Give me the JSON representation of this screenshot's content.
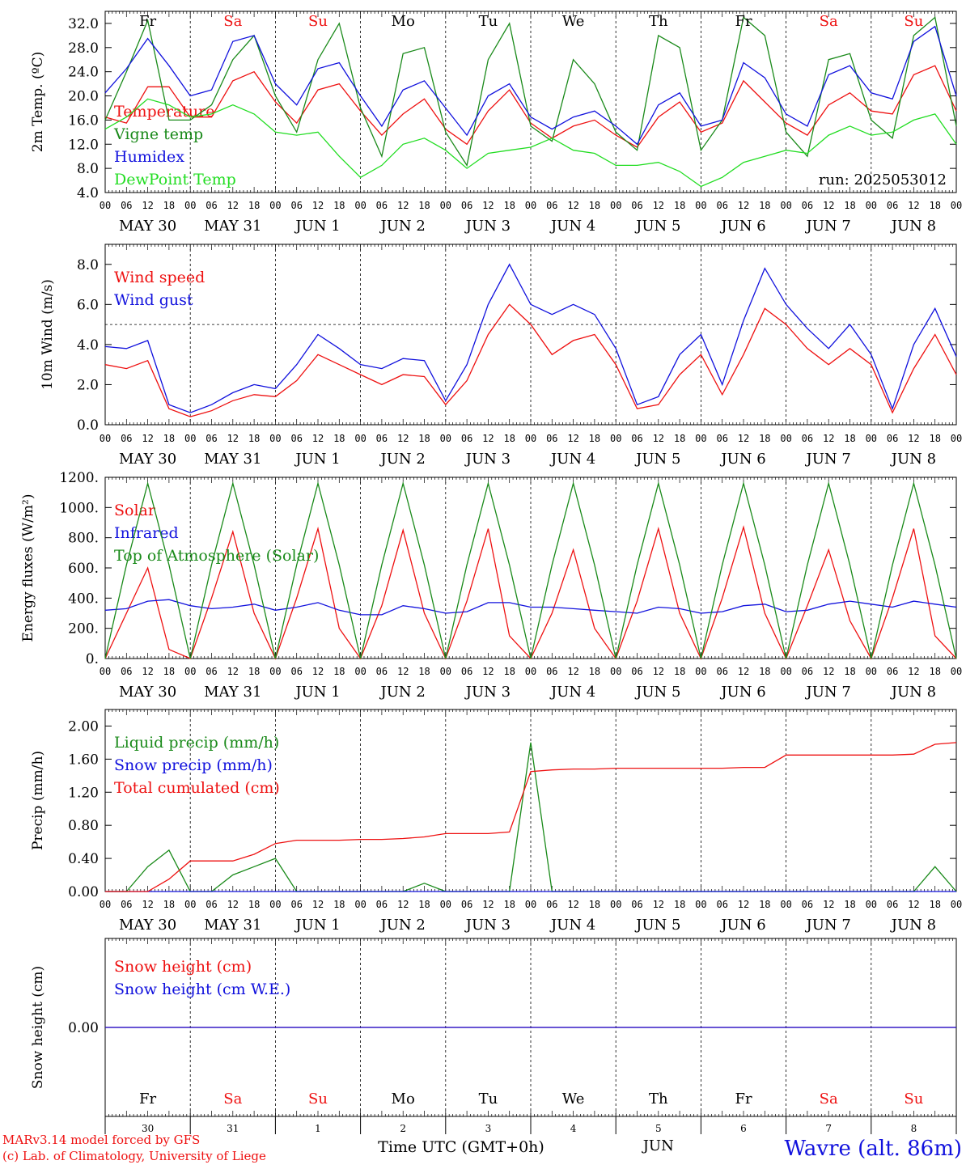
{
  "colors": {
    "red": "#ee1111",
    "green": "#1a8a1a",
    "lightgreen": "#22dd22",
    "blue": "#1111dd",
    "frame": "#000000"
  },
  "days": {
    "weekday_top": [
      "Fr",
      "Sa",
      "Su",
      "Mo",
      "Tu",
      "We",
      "Th",
      "Fr",
      "Sa",
      "Su"
    ],
    "weekday_weekend": [
      false,
      true,
      true,
      false,
      false,
      false,
      false,
      false,
      true,
      true
    ],
    "date_labels": [
      "MAY 30",
      "MAY 31",
      "JUN  1",
      "JUN  2",
      "JUN  3",
      "JUN  4",
      "JUN  5",
      "JUN  6",
      "JUN  7",
      "JUN  8"
    ],
    "hour_ticks": [
      "00",
      "06",
      "12",
      "18"
    ],
    "final_hour": "00",
    "day_numbers": [
      "30",
      "31",
      "1",
      "2",
      "3",
      "4",
      "5",
      "6",
      "7",
      "8"
    ],
    "month_label": "JUN"
  },
  "footer": {
    "model": "MARv3.14 model forced by GFS",
    "copyright": "(c) Lab. of Climatology, University of Liege",
    "time_label": "Time UTC (GMT+0h)",
    "station": "Wavre (alt. 86m)"
  },
  "chart_data": [
    {
      "id": "temperature",
      "type": "line",
      "ylabel": "2m Temp. (ºC)",
      "ylim": [
        4,
        34
      ],
      "yticks": [
        "4.0",
        "8.0",
        "12.0",
        "16.0",
        "20.0",
        "24.0",
        "28.0",
        "32.0"
      ],
      "run_label": "run: 2025053012",
      "x_unit": "hours since 2025-05-30 00 UTC (6-hourly)",
      "series": [
        {
          "name": "Temperature",
          "color": "red",
          "values": [
            16.5,
            15.5,
            21.5,
            21.5,
            16.5,
            16.5,
            22.5,
            24.0,
            19.0,
            15.5,
            21.0,
            22.0,
            17.5,
            13.5,
            17.0,
            19.5,
            14.5,
            12.0,
            17.5,
            21.0,
            15.5,
            13.0,
            15.0,
            16.0,
            13.5,
            11.5,
            16.5,
            19.0,
            14.0,
            15.5,
            22.5,
            19.0,
            15.5,
            13.5,
            18.5,
            20.5,
            17.5,
            17.0,
            23.5,
            25.0,
            17.5
          ]
        },
        {
          "name": "Vigne temp",
          "color": "green",
          "values": [
            16.0,
            24.0,
            32.5,
            16.0,
            16.0,
            18.5,
            26.0,
            30.0,
            20.0,
            14.0,
            26.0,
            32.0,
            18.0,
            10.0,
            27.0,
            28.0,
            14.0,
            8.5,
            26.0,
            32.0,
            15.0,
            12.5,
            26.0,
            22.0,
            14.0,
            11.0,
            30.0,
            28.0,
            11.0,
            16.0,
            33.0,
            30.0,
            14.0,
            10.0,
            26.0,
            27.0,
            16.0,
            13.0,
            30.0,
            33.0,
            15.0
          ]
        },
        {
          "name": "Humidex",
          "color": "blue",
          "values": [
            20.5,
            24.5,
            29.5,
            25.0,
            20.0,
            21.0,
            29.0,
            30.0,
            22.0,
            18.5,
            24.5,
            25.5,
            20.0,
            15.0,
            21.0,
            22.5,
            18.0,
            13.5,
            20.0,
            22.0,
            16.5,
            14.5,
            16.5,
            17.5,
            15.0,
            12.0,
            18.5,
            20.5,
            15.0,
            16.0,
            25.5,
            23.0,
            17.0,
            15.0,
            23.5,
            25.0,
            20.5,
            19.5,
            29.0,
            31.5,
            20.0
          ]
        },
        {
          "name": "DewPoint Temp",
          "color": "lightgreen",
          "values": [
            14.5,
            16.5,
            19.5,
            18.5,
            16.5,
            17.0,
            18.5,
            17.0,
            14.0,
            13.5,
            14.0,
            10.0,
            6.5,
            8.5,
            12.0,
            13.0,
            11.0,
            8.0,
            10.5,
            11.0,
            11.5,
            13.0,
            11.0,
            10.5,
            8.5,
            8.5,
            9.0,
            7.5,
            5.0,
            6.5,
            9.0,
            10.0,
            11.0,
            10.5,
            13.5,
            15.0,
            13.5,
            14.0,
            16.0,
            17.0,
            12.0
          ]
        }
      ]
    },
    {
      "id": "wind",
      "type": "line",
      "ylabel": "10m Wind (m/s)",
      "ylim": [
        0,
        9
      ],
      "yticks": [
        "0.0",
        "2.0",
        "4.0",
        "6.0",
        "8.0"
      ],
      "reference_line": 5,
      "series": [
        {
          "name": "Wind speed",
          "color": "red",
          "values": [
            3.0,
            2.8,
            3.2,
            0.8,
            0.4,
            0.7,
            1.2,
            1.5,
            1.4,
            2.2,
            3.5,
            3.0,
            2.5,
            2.0,
            2.5,
            2.4,
            1.0,
            2.2,
            4.5,
            6.0,
            5.0,
            3.5,
            4.2,
            4.5,
            3.0,
            0.8,
            1.0,
            2.5,
            3.5,
            1.5,
            3.5,
            5.8,
            5.0,
            3.8,
            3.0,
            3.8,
            3.0,
            0.6,
            2.8,
            4.5,
            2.5
          ]
        },
        {
          "name": "Wind gust",
          "color": "blue",
          "values": [
            3.9,
            3.8,
            4.2,
            1.0,
            0.6,
            1.0,
            1.6,
            2.0,
            1.8,
            3.0,
            4.5,
            3.8,
            3.0,
            2.8,
            3.3,
            3.2,
            1.2,
            3.0,
            6.0,
            8.0,
            6.0,
            5.5,
            6.0,
            5.5,
            3.8,
            1.0,
            1.4,
            3.5,
            4.5,
            2.0,
            5.2,
            7.8,
            6.0,
            4.8,
            3.8,
            5.0,
            3.5,
            0.8,
            4.0,
            5.8,
            3.4
          ]
        }
      ]
    },
    {
      "id": "energy",
      "type": "line",
      "ylabel": "Energy fluxes (W/m²)",
      "ylim": [
        0,
        1200
      ],
      "yticks": [
        "0.",
        "200.",
        "400.",
        "600.",
        "800.",
        "1000.",
        "1200."
      ],
      "series": [
        {
          "name": "Solar",
          "color": "red",
          "values": [
            0,
            300,
            600,
            60,
            0,
            400,
            840,
            300,
            0,
            400,
            860,
            200,
            0,
            350,
            850,
            300,
            0,
            380,
            860,
            150,
            0,
            300,
            720,
            200,
            0,
            380,
            860,
            300,
            0,
            400,
            870,
            300,
            0,
            350,
            720,
            250,
            0,
            400,
            860,
            150,
            0
          ]
        },
        {
          "name": "Infrared",
          "color": "blue",
          "values": [
            320,
            330,
            380,
            390,
            350,
            330,
            340,
            360,
            320,
            340,
            370,
            320,
            290,
            290,
            350,
            330,
            300,
            310,
            370,
            370,
            340,
            340,
            330,
            320,
            310,
            300,
            340,
            330,
            300,
            310,
            350,
            360,
            310,
            320,
            360,
            380,
            360,
            340,
            380,
            360,
            340
          ]
        },
        {
          "name": "Top of Atmosphere (Solar)",
          "color": "green",
          "values": [
            0,
            620,
            1160,
            620,
            0,
            620,
            1160,
            620,
            0,
            620,
            1160,
            620,
            0,
            620,
            1160,
            620,
            0,
            620,
            1160,
            620,
            0,
            620,
            1160,
            620,
            0,
            620,
            1160,
            620,
            0,
            620,
            1160,
            620,
            0,
            620,
            1160,
            620,
            0,
            620,
            1160,
            620,
            0
          ]
        }
      ]
    },
    {
      "id": "precip",
      "type": "line",
      "ylabel": "Precip (mm/h)",
      "ylim": [
        0,
        2.2
      ],
      "yticks": [
        "0.00",
        "0.40",
        "0.80",
        "1.20",
        "1.60",
        "2.00"
      ],
      "series": [
        {
          "name": "Liquid precip (mm/h)",
          "color": "green",
          "values": [
            0,
            0,
            0.3,
            0.5,
            0,
            0,
            0.2,
            0.3,
            0.4,
            0,
            0,
            0,
            0,
            0,
            0,
            0.1,
            0,
            0,
            0,
            0,
            1.8,
            0,
            0,
            0,
            0,
            0,
            0,
            0,
            0,
            0,
            0,
            0,
            0,
            0,
            0,
            0,
            0,
            0,
            0,
            0.3,
            0
          ]
        },
        {
          "name": "Snow precip (mm/h)",
          "color": "blue",
          "values": [
            0,
            0,
            0,
            0,
            0,
            0,
            0,
            0,
            0,
            0,
            0,
            0,
            0,
            0,
            0,
            0,
            0,
            0,
            0,
            0,
            0,
            0,
            0,
            0,
            0,
            0,
            0,
            0,
            0,
            0,
            0,
            0,
            0,
            0,
            0,
            0,
            0,
            0,
            0,
            0,
            0
          ]
        },
        {
          "name": "Total cumulated (cm)",
          "color": "red",
          "values": [
            0,
            0,
            0,
            0.15,
            0.37,
            0.37,
            0.37,
            0.45,
            0.58,
            0.62,
            0.62,
            0.62,
            0.63,
            0.63,
            0.64,
            0.66,
            0.7,
            0.7,
            0.7,
            0.72,
            1.45,
            1.47,
            1.48,
            1.48,
            1.49,
            1.49,
            1.49,
            1.49,
            1.49,
            1.49,
            1.5,
            1.5,
            1.65,
            1.65,
            1.65,
            1.65,
            1.65,
            1.65,
            1.66,
            1.78,
            1.8
          ]
        }
      ]
    },
    {
      "id": "snow",
      "type": "line",
      "ylabel": "Snow height (cm)",
      "ylim": [
        -1,
        1
      ],
      "yticks": [
        "0.00"
      ],
      "series": [
        {
          "name": "Snow height (cm)",
          "color": "red",
          "values": [
            0,
            0,
            0,
            0,
            0,
            0,
            0,
            0,
            0,
            0,
            0,
            0,
            0,
            0,
            0,
            0,
            0,
            0,
            0,
            0,
            0,
            0,
            0,
            0,
            0,
            0,
            0,
            0,
            0,
            0,
            0,
            0,
            0,
            0,
            0,
            0,
            0,
            0,
            0,
            0,
            0
          ]
        },
        {
          "name": "Snow height (cm W.E.)",
          "color": "blue",
          "values": [
            0,
            0,
            0,
            0,
            0,
            0,
            0,
            0,
            0,
            0,
            0,
            0,
            0,
            0,
            0,
            0,
            0,
            0,
            0,
            0,
            0,
            0,
            0,
            0,
            0,
            0,
            0,
            0,
            0,
            0,
            0,
            0,
            0,
            0,
            0,
            0,
            0,
            0,
            0,
            0,
            0
          ]
        }
      ]
    }
  ]
}
